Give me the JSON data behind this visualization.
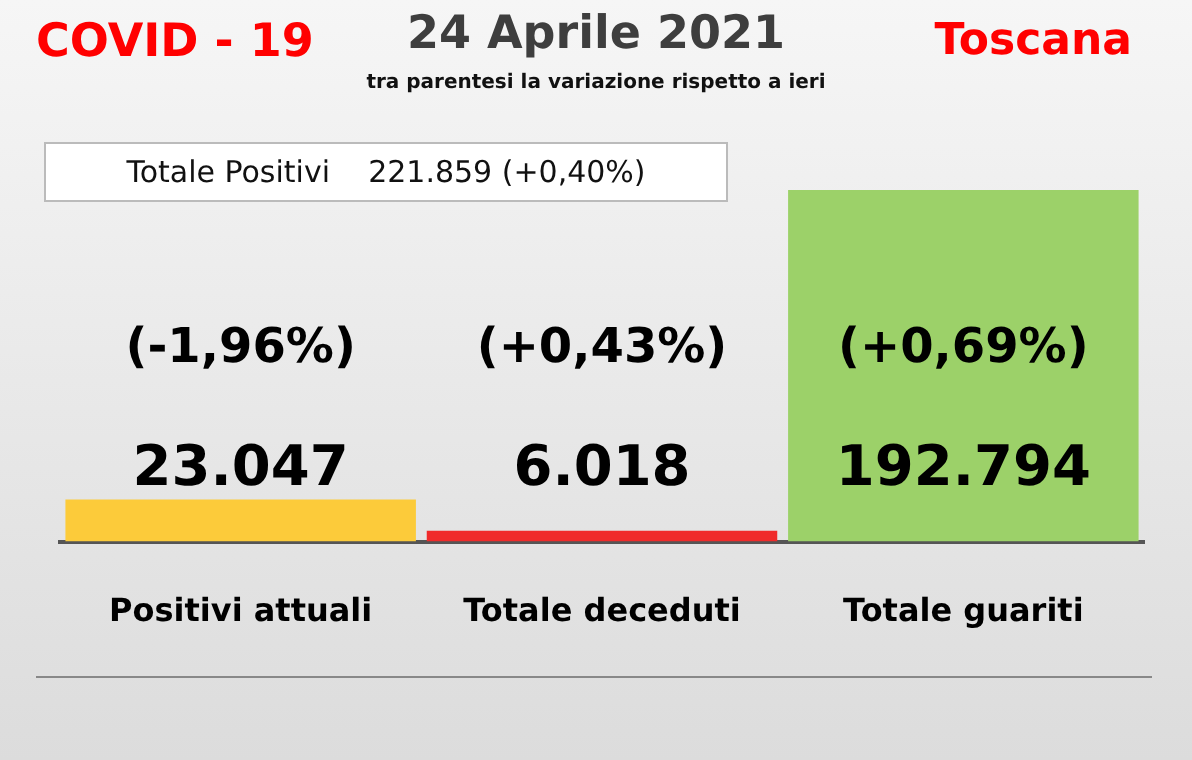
{
  "chart_data": {
    "type": "bar",
    "title": "24 Aprile 2021",
    "subtitle": "tra parentesi la variazione rispetto a ieri",
    "categories": [
      "Positivi attuali",
      "Totale deceduti",
      "Totale guariti"
    ],
    "values": [
      23047,
      6018,
      192794
    ],
    "colors": [
      "#fccb3a",
      "#f02a2a",
      "#9cd169"
    ],
    "value_labels": [
      "23.047",
      "6.018",
      "192.794"
    ],
    "annotations": [
      "COVID - 19",
      "Toscana",
      "Totale Positivi    221.859 (+0,40%)",
      "(-1,96%)",
      "(+0,43%)",
      "(+0,69%)"
    ],
    "relative": false
  }
}
